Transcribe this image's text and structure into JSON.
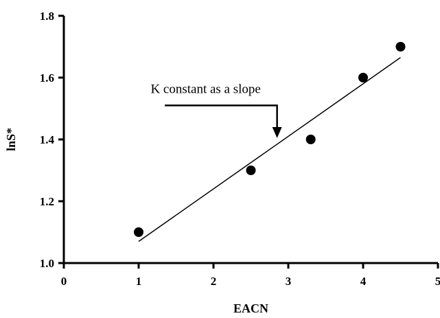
{
  "chart_data": {
    "type": "scatter",
    "xlabel": "EACN",
    "ylabel": "lnS*",
    "xlim": [
      0,
      5
    ],
    "ylim": [
      1.0,
      1.8
    ],
    "x_ticks": [
      0,
      1,
      2,
      3,
      4,
      5
    ],
    "x_tick_labels": [
      "0",
      "1",
      "2",
      "3",
      "4",
      "5"
    ],
    "y_ticks": [
      1.0,
      1.2,
      1.4,
      1.6,
      1.8
    ],
    "y_tick_labels": [
      "1.0",
      "1.2",
      "1.4",
      "1.6",
      "1.8"
    ],
    "series": [
      {
        "points": [
          {
            "x": 1.0,
            "y": 1.1
          },
          {
            "x": 2.5,
            "y": 1.3
          },
          {
            "x": 3.3,
            "y": 1.4
          },
          {
            "x": 4.0,
            "y": 1.6
          },
          {
            "x": 4.5,
            "y": 1.7
          }
        ]
      }
    ],
    "fit_line": {
      "x1": 1.0,
      "y1": 1.07,
      "x2": 4.5,
      "y2": 1.665
    },
    "annotation": {
      "text": "K constant as a slope",
      "arrow_from": {
        "x": 1.35,
        "y": 1.51
      },
      "arrow_corner": {
        "x": 2.85,
        "y": 1.51
      },
      "arrow_to": {
        "x": 2.85,
        "y": 1.4
      }
    },
    "grid": false,
    "legend": "none"
  }
}
